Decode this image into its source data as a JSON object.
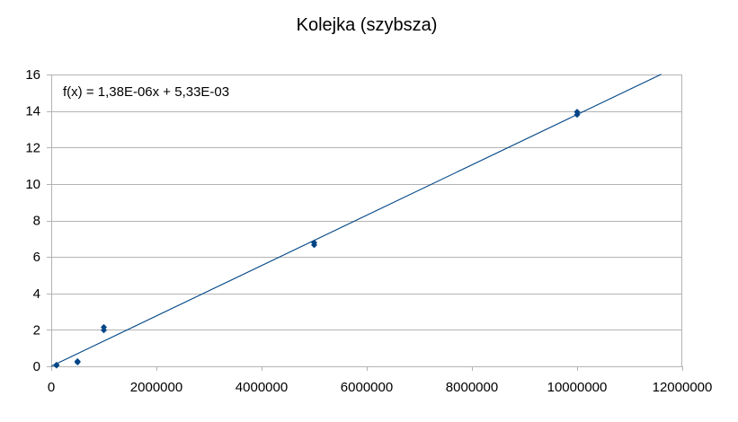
{
  "chart_data": {
    "type": "scatter",
    "title": "Kolejka (szybsza)",
    "xlim": [
      0,
      12000000
    ],
    "ylim": [
      0,
      16
    ],
    "x_ticks": [
      0,
      2000000,
      4000000,
      6000000,
      8000000,
      10000000,
      12000000
    ],
    "x_tick_labels": [
      "0",
      "2000000",
      "4000000",
      "6000000",
      "8000000",
      "10000000",
      "12000000"
    ],
    "y_ticks": [
      0,
      2,
      4,
      6,
      8,
      10,
      12,
      14,
      16
    ],
    "y_tick_labels": [
      "0",
      "2",
      "4",
      "6",
      "8",
      "10",
      "12",
      "14",
      "16"
    ],
    "grid": true,
    "series": [
      {
        "x": [
          100000,
          100000,
          500000,
          500000,
          1000000,
          1000000,
          5000000,
          5000000,
          10000000,
          10000000
        ],
        "y": [
          0.05,
          0.08,
          0.22,
          0.28,
          1.98,
          2.15,
          6.65,
          6.78,
          13.8,
          13.95
        ],
        "color": "#004586",
        "marker": "diamond"
      }
    ],
    "trendline": {
      "slope": 1.38e-06,
      "intercept": 0.00533,
      "x_range": [
        0,
        11600000
      ],
      "color": "#004586"
    },
    "equation": "f(x) = 1,38E-06x + 5,33E-03"
  }
}
